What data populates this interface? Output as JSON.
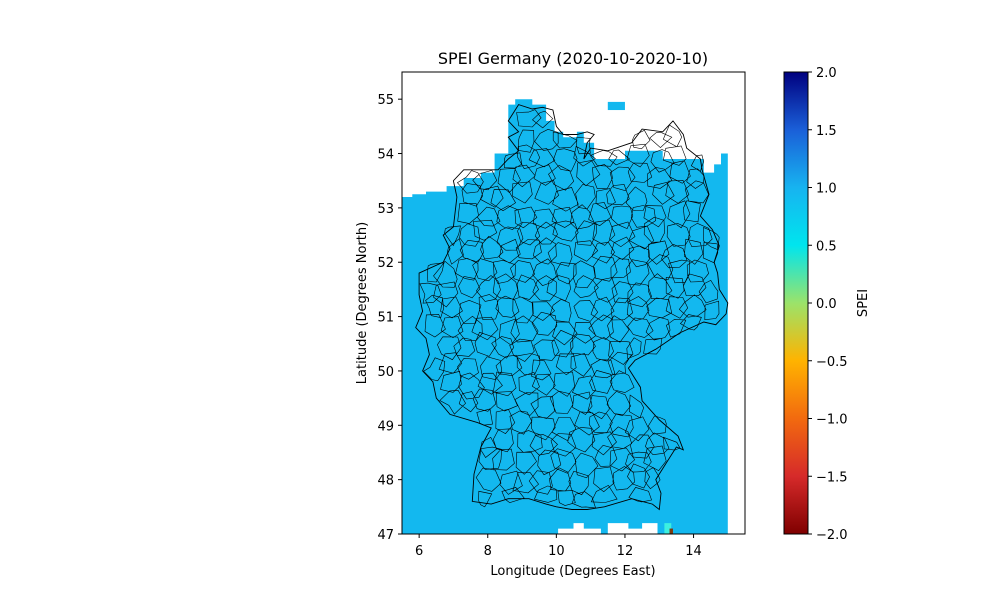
{
  "chart_data": {
    "type": "heatmap",
    "title": "SPEI Germany (2020-10-2020-10)",
    "xlabel": "Longitude (Degrees East)",
    "ylabel": "Latitude (Degrees North)",
    "xlim": [
      5.5,
      15.5
    ],
    "ylim": [
      47.0,
      55.5
    ],
    "x_ticks": [
      6,
      8,
      10,
      12,
      14
    ],
    "y_ticks": [
      47,
      48,
      49,
      50,
      51,
      52,
      53,
      54,
      55
    ],
    "grid": false,
    "field_value_dominant": 0.95,
    "field_color": "#13b8ef",
    "colorbar": {
      "label": "SPEI",
      "range": [
        -2.0,
        2.0
      ],
      "ticks": [
        "2.0",
        "1.5",
        "1.0",
        "0.5",
        "0.0",
        "−0.5",
        "−1.0",
        "−1.5",
        "−2.0"
      ],
      "tick_values": [
        2.0,
        1.5,
        1.0,
        0.5,
        0.0,
        -0.5,
        -1.0,
        -1.5,
        -2.0
      ],
      "colormap": [
        {
          "v": -2.0,
          "c": "#7f0000"
        },
        {
          "v": -1.5,
          "c": "#d62a2a"
        },
        {
          "v": -1.0,
          "c": "#f26a0f"
        },
        {
          "v": -0.5,
          "c": "#ffb300"
        },
        {
          "v": 0.0,
          "c": "#9be36a"
        },
        {
          "v": 0.5,
          "c": "#00e5ee"
        },
        {
          "v": 1.0,
          "c": "#17b3f0"
        },
        {
          "v": 1.5,
          "c": "#1a5fd8"
        },
        {
          "v": 2.0,
          "c": "#00007f"
        }
      ]
    },
    "overlay": "Germany district boundaries (black outlines)"
  }
}
